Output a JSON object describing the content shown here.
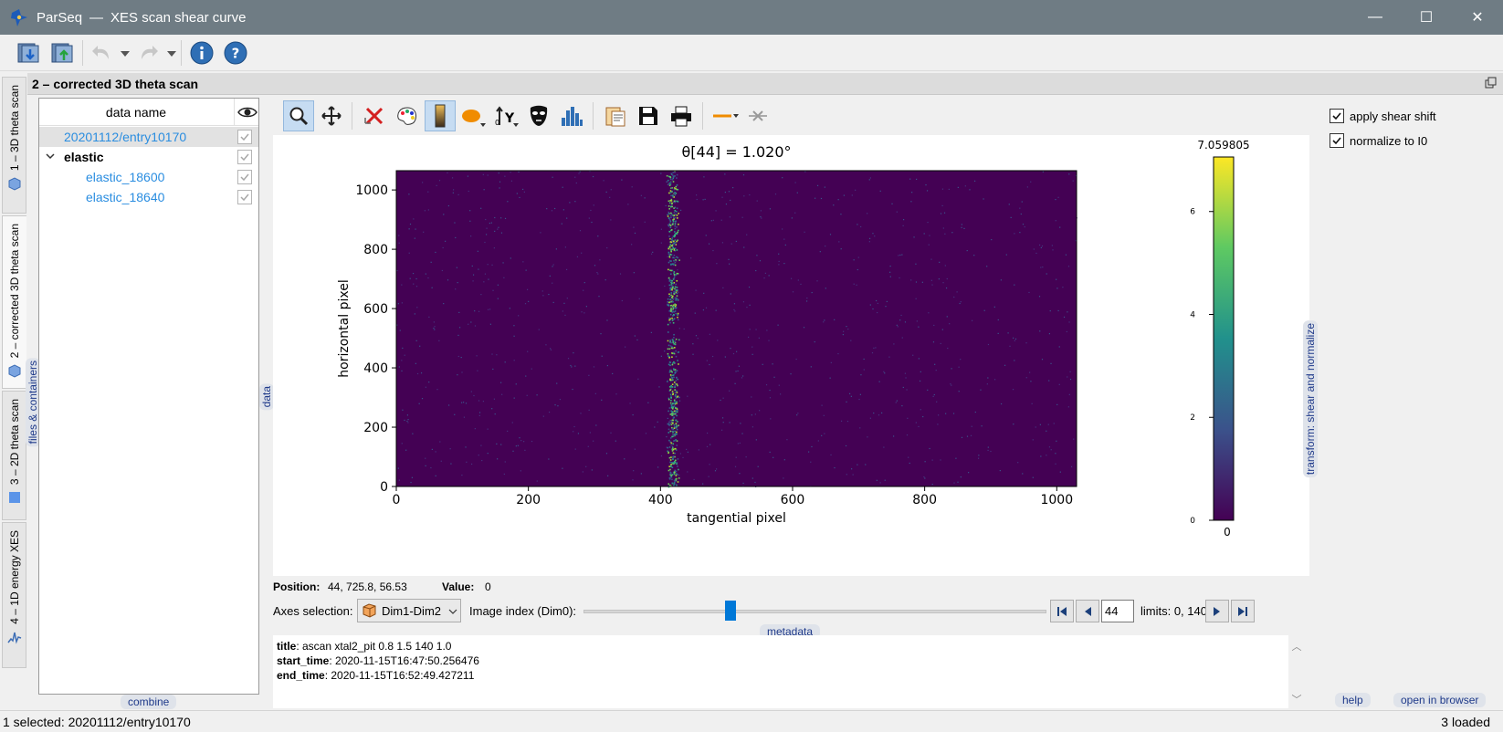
{
  "window": {
    "app_name": "ParSeq",
    "separator": "—",
    "title": "XES scan shear curve",
    "minimize": "—",
    "maximize": "☐",
    "close": "✕"
  },
  "vtabs": [
    {
      "label": "1 – 3D theta scan"
    },
    {
      "label": "2 – corrected 3D theta scan"
    },
    {
      "label": "3 – 2D theta scan"
    },
    {
      "label": "4 – 1D energy XES"
    }
  ],
  "node": {
    "title": "2 – corrected 3D theta scan"
  },
  "side_labels": {
    "files": "files & containers",
    "data": "data",
    "combine": "combine"
  },
  "tree": {
    "header": "data name",
    "rows": [
      {
        "label": "20201112/entry10170",
        "selected": true
      },
      {
        "label": "elastic",
        "group": true
      },
      {
        "label": "elastic_18600"
      },
      {
        "label": "elastic_18640"
      }
    ]
  },
  "status": {
    "position_label": "Position:",
    "position_value": "44, 725.8, 56.53",
    "value_label": "Value:",
    "value_value": "0"
  },
  "axes": {
    "selection_label": "Axes selection:",
    "selection_value": "Dim1-Dim2",
    "image_index_label": "Image index (Dim0):",
    "index_value": "44",
    "index_fraction": 0.314,
    "limits_label": "limits: 0, 140"
  },
  "metadata": {
    "tag": "metadata",
    "items": [
      {
        "key": "title",
        "value": ": ascan xtal2_pit 0.8 1.5 140 1.0"
      },
      {
        "key": "start_time",
        "value": ": 2020-11-15T16:47:50.256476"
      },
      {
        "key": "end_time",
        "value": ": 2020-11-15T16:52:49.427211"
      }
    ]
  },
  "transform": {
    "label": "transform: shear and normalize",
    "apply_shear": "apply shear shift",
    "normalize": "normalize to I0",
    "help": "help",
    "open_browser": "open in browser"
  },
  "footer": {
    "selected": "1 selected: 20201112/entry10170",
    "loaded": "3 loaded"
  },
  "chart_data": {
    "type": "heatmap",
    "title": "θ[44] = 1.020°",
    "xlabel": "tangential pixel",
    "ylabel": "horizontal pixel",
    "xlim": [
      0,
      1030
    ],
    "ylim": [
      0,
      1065
    ],
    "xticks": [
      "0",
      "200",
      "400",
      "600",
      "800",
      "1000"
    ],
    "yticks": [
      "0",
      "200",
      "400",
      "600",
      "800",
      "1000"
    ],
    "colorbar": {
      "max_label": "7.059805",
      "min_label": "0",
      "ticks": [
        "0",
        "2",
        "4",
        "6"
      ],
      "vmin": 0,
      "vmax": 7.059805,
      "colormap": "viridis"
    },
    "features": [
      {
        "type": "vertical_line",
        "x_center": 418,
        "x_width": 20,
        "gap_y": [
          500,
          560
        ]
      }
    ],
    "background_value": 0
  }
}
